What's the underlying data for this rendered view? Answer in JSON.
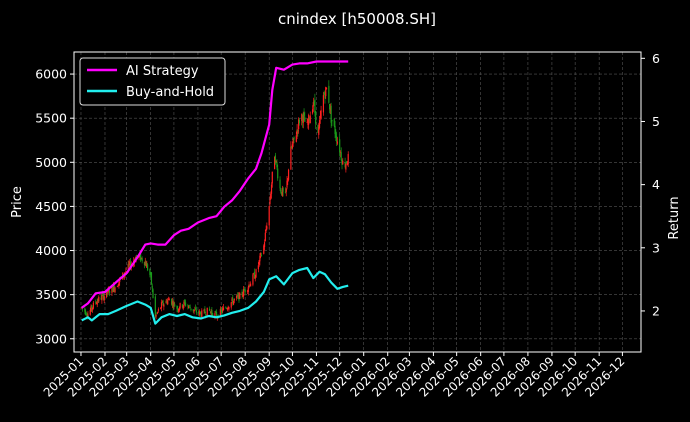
{
  "chart_data": {
    "type": "line",
    "title": "cnindex [h50008.SH]",
    "xlabel": "",
    "ylabel_left": "Price",
    "ylabel_right": "Return",
    "grid": true,
    "legend_position": "top-left",
    "xlim": [
      "2024-12-23",
      "2026-12-25"
    ],
    "ylim_left": [
      2850,
      6250
    ],
    "ylim_right": [
      1.35,
      6.1
    ],
    "x_ticks": [
      "2025-01",
      "2025-02",
      "2025-03",
      "2025-04",
      "2025-05",
      "2025-06",
      "2025-07",
      "2025-08",
      "2025-09",
      "2025-10",
      "2025-11",
      "2025-12",
      "2026-01",
      "2026-02",
      "2026-03",
      "2026-04",
      "2026-05",
      "2026-06",
      "2026-07",
      "2026-08",
      "2026-09",
      "2026-10",
      "2026-11",
      "2026-12"
    ],
    "y_ticks_left": [
      3000,
      3500,
      4000,
      4500,
      5000,
      5500,
      6000
    ],
    "y_ticks_right": [
      2,
      3,
      4,
      5,
      6
    ],
    "colors": {
      "background": "#000000",
      "strategy": "#ff00ff",
      "buyhold": "#22eeee",
      "candle_up": "#ff2020",
      "candle_down": "#1a9a1a",
      "grid": "#555555",
      "axis": "#ffffff"
    },
    "price_path": [
      [
        "2025-01-02",
        3350
      ],
      [
        "2025-01-10",
        3280
      ],
      [
        "2025-01-20",
        3420
      ],
      [
        "2025-02-01",
        3500
      ],
      [
        "2025-02-15",
        3600
      ],
      [
        "2025-03-01",
        3780
      ],
      [
        "2025-03-15",
        3950
      ],
      [
        "2025-03-25",
        3870
      ],
      [
        "2025-04-01",
        3700
      ],
      [
        "2025-04-07",
        3250
      ],
      [
        "2025-04-15",
        3380
      ],
      [
        "2025-04-25",
        3450
      ],
      [
        "2025-05-05",
        3350
      ],
      [
        "2025-05-15",
        3400
      ],
      [
        "2025-05-25",
        3330
      ],
      [
        "2025-06-05",
        3280
      ],
      [
        "2025-06-15",
        3320
      ],
      [
        "2025-06-25",
        3260
      ],
      [
        "2025-07-05",
        3340
      ],
      [
        "2025-07-15",
        3420
      ],
      [
        "2025-07-25",
        3480
      ],
      [
        "2025-08-05",
        3600
      ],
      [
        "2025-08-15",
        3750
      ],
      [
        "2025-08-25",
        4050
      ],
      [
        "2025-09-01",
        4500
      ],
      [
        "2025-09-08",
        5100
      ],
      [
        "2025-09-15",
        4700
      ],
      [
        "2025-09-22",
        4600
      ],
      [
        "2025-09-28",
        5100
      ],
      [
        "2025-10-05",
        5300
      ],
      [
        "2025-10-12",
        5550
      ],
      [
        "2025-10-20",
        5400
      ],
      [
        "2025-10-28",
        5700
      ],
      [
        "2025-11-03",
        5300
      ],
      [
        "2025-11-10",
        5750
      ],
      [
        "2025-11-15",
        5850
      ],
      [
        "2025-11-20",
        5500
      ],
      [
        "2025-11-25",
        5350
      ],
      [
        "2025-12-01",
        5150
      ],
      [
        "2025-12-06",
        4950
      ],
      [
        "2025-12-12",
        5050
      ]
    ],
    "series": [
      {
        "name": "AI Strategy",
        "axis": "right",
        "points": [
          [
            "2025-01-02",
            2.05
          ],
          [
            "2025-01-10",
            2.12
          ],
          [
            "2025-01-20",
            2.28
          ],
          [
            "2025-02-01",
            2.3
          ],
          [
            "2025-02-15",
            2.45
          ],
          [
            "2025-03-01",
            2.6
          ],
          [
            "2025-03-15",
            2.85
          ],
          [
            "2025-03-25",
            3.05
          ],
          [
            "2025-04-01",
            3.07
          ],
          [
            "2025-04-10",
            3.05
          ],
          [
            "2025-04-20",
            3.05
          ],
          [
            "2025-05-01",
            3.2
          ],
          [
            "2025-05-10",
            3.27
          ],
          [
            "2025-05-20",
            3.3
          ],
          [
            "2025-06-01",
            3.4
          ],
          [
            "2025-06-15",
            3.47
          ],
          [
            "2025-06-25",
            3.5
          ],
          [
            "2025-07-05",
            3.65
          ],
          [
            "2025-07-15",
            3.75
          ],
          [
            "2025-07-25",
            3.9
          ],
          [
            "2025-08-05",
            4.1
          ],
          [
            "2025-08-15",
            4.25
          ],
          [
            "2025-08-22",
            4.5
          ],
          [
            "2025-09-01",
            4.95
          ],
          [
            "2025-09-05",
            5.5
          ],
          [
            "2025-09-10",
            5.85
          ],
          [
            "2025-09-20",
            5.82
          ],
          [
            "2025-10-01",
            5.9
          ],
          [
            "2025-10-10",
            5.92
          ],
          [
            "2025-10-20",
            5.92
          ],
          [
            "2025-11-01",
            5.95
          ],
          [
            "2025-11-15",
            5.95
          ],
          [
            "2025-12-01",
            5.95
          ],
          [
            "2025-12-12",
            5.95
          ]
        ]
      },
      {
        "name": "Buy-and-Hold",
        "axis": "right",
        "points": [
          [
            "2025-01-02",
            1.85
          ],
          [
            "2025-01-10",
            1.9
          ],
          [
            "2025-01-15",
            1.85
          ],
          [
            "2025-01-25",
            1.95
          ],
          [
            "2025-02-05",
            1.95
          ],
          [
            "2025-02-15",
            2.0
          ],
          [
            "2025-03-01",
            2.08
          ],
          [
            "2025-03-15",
            2.15
          ],
          [
            "2025-03-25",
            2.1
          ],
          [
            "2025-04-01",
            2.05
          ],
          [
            "2025-04-07",
            1.8
          ],
          [
            "2025-04-15",
            1.9
          ],
          [
            "2025-04-25",
            1.95
          ],
          [
            "2025-05-05",
            1.92
          ],
          [
            "2025-05-15",
            1.95
          ],
          [
            "2025-05-25",
            1.9
          ],
          [
            "2025-06-05",
            1.88
          ],
          [
            "2025-06-15",
            1.92
          ],
          [
            "2025-06-25",
            1.9
          ],
          [
            "2025-07-05",
            1.93
          ],
          [
            "2025-07-15",
            1.97
          ],
          [
            "2025-07-25",
            2.0
          ],
          [
            "2025-08-05",
            2.05
          ],
          [
            "2025-08-15",
            2.15
          ],
          [
            "2025-08-25",
            2.3
          ],
          [
            "2025-09-01",
            2.5
          ],
          [
            "2025-09-10",
            2.55
          ],
          [
            "2025-09-20",
            2.42
          ],
          [
            "2025-10-01",
            2.6
          ],
          [
            "2025-10-10",
            2.65
          ],
          [
            "2025-10-20",
            2.68
          ],
          [
            "2025-10-28",
            2.52
          ],
          [
            "2025-11-05",
            2.62
          ],
          [
            "2025-11-12",
            2.58
          ],
          [
            "2025-11-20",
            2.45
          ],
          [
            "2025-11-28",
            2.35
          ],
          [
            "2025-12-05",
            2.38
          ],
          [
            "2025-12-12",
            2.4
          ]
        ]
      }
    ]
  }
}
